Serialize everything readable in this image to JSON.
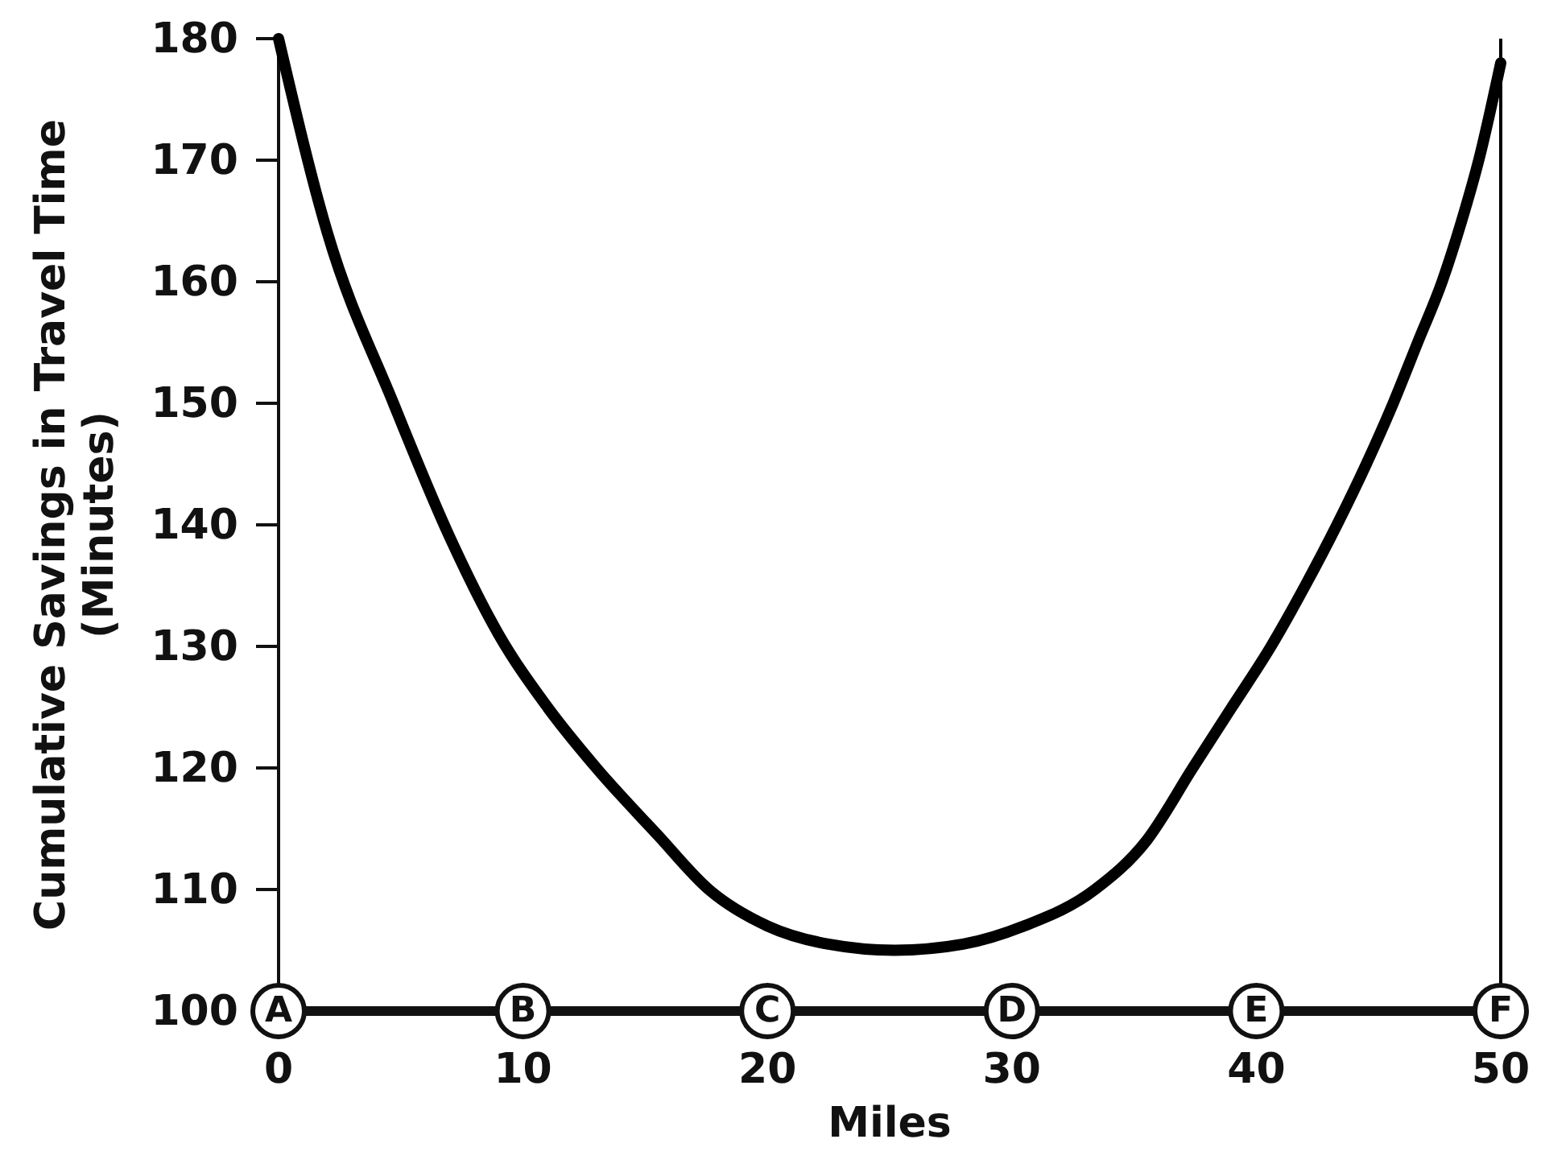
{
  "chart_data": {
    "type": "line",
    "xlabel": "Miles",
    "ylabel": "Cumulative Savings in Travel Time\n(Minutes)",
    "xlim": [
      0,
      50
    ],
    "ylim": [
      100,
      180
    ],
    "xticks": [
      0,
      10,
      20,
      30,
      40,
      50
    ],
    "yticks": [
      100,
      110,
      120,
      130,
      140,
      150,
      160,
      170,
      180
    ],
    "marker": "none",
    "line_style": "solid",
    "series": [
      {
        "color": "#000000",
        "x": [
          0,
          2,
          4.7,
          7,
          9,
          11,
          13,
          15.5,
          17.6,
          20,
          22.5,
          25.2,
          28,
          30.5,
          33.4,
          35.5,
          37.4,
          39,
          40.6,
          42,
          43.3,
          44.5,
          45.6,
          46.6,
          47.6,
          48.4,
          49.1,
          50
        ],
        "values": [
          180,
          164,
          150,
          139,
          131,
          125,
          120,
          114.5,
          110,
          107,
          105.5,
          105,
          105.5,
          107,
          110,
          114,
          120,
          125,
          130,
          135,
          140,
          145,
          150,
          155,
          160,
          165,
          170,
          178
        ]
      }
    ],
    "ref_lines": [
      {
        "axis": "x",
        "value": 50,
        "color": "#000000"
      }
    ],
    "annotations": [
      {
        "text": "A",
        "x": 0,
        "y": 100
      },
      {
        "text": "B",
        "x": 10,
        "y": 100
      },
      {
        "text": "C",
        "x": 20,
        "y": 100
      },
      {
        "text": "D",
        "x": 30,
        "y": 100
      },
      {
        "text": "E",
        "x": 40,
        "y": 100
      },
      {
        "text": "F",
        "x": 50,
        "y": 100
      }
    ]
  }
}
